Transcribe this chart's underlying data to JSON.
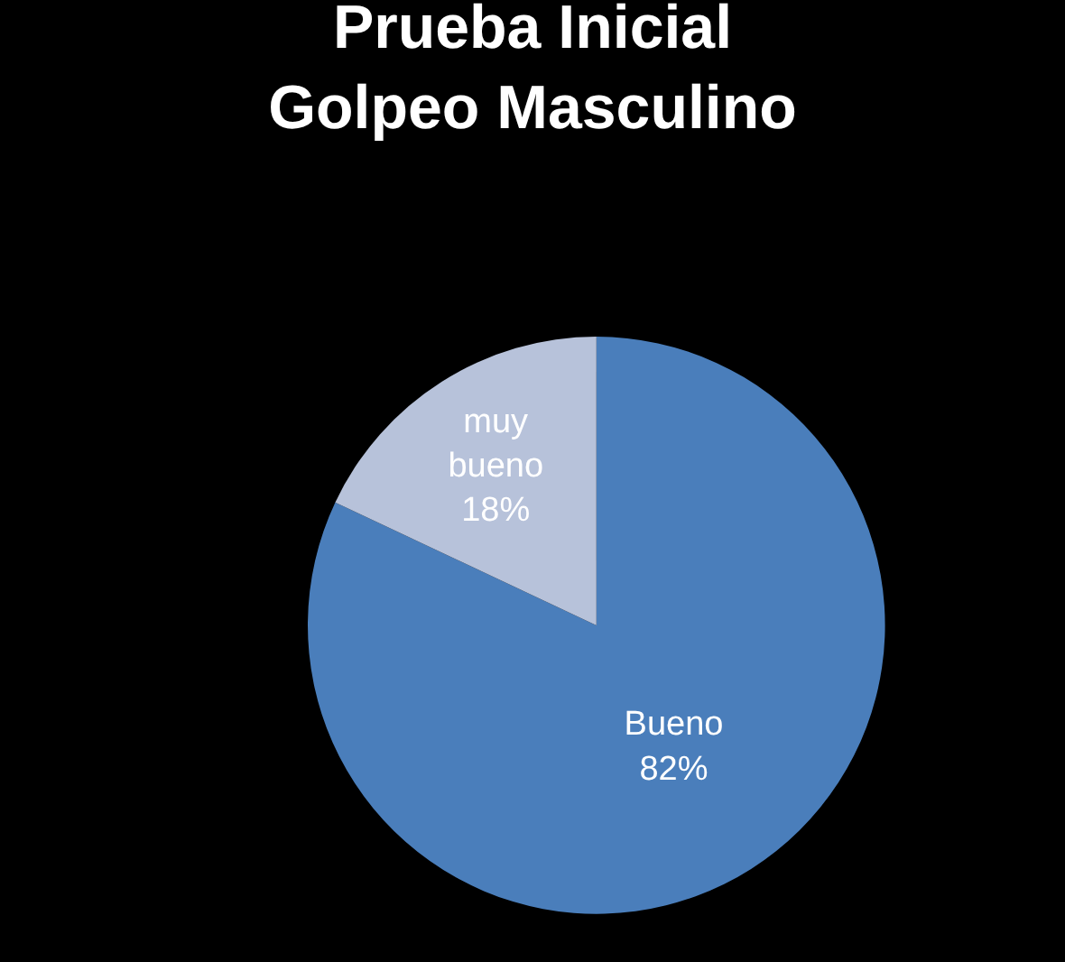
{
  "chart_data": {
    "type": "pie",
    "title": "Prueba Inicial\nGolpeo Masculino",
    "categories": [
      "Bueno",
      "muy bueno"
    ],
    "values": [
      82,
      18
    ],
    "value_labels": [
      "82%",
      "18%"
    ],
    "colors": [
      "#4a7ebb",
      "#b7c2da"
    ],
    "legend": false
  }
}
